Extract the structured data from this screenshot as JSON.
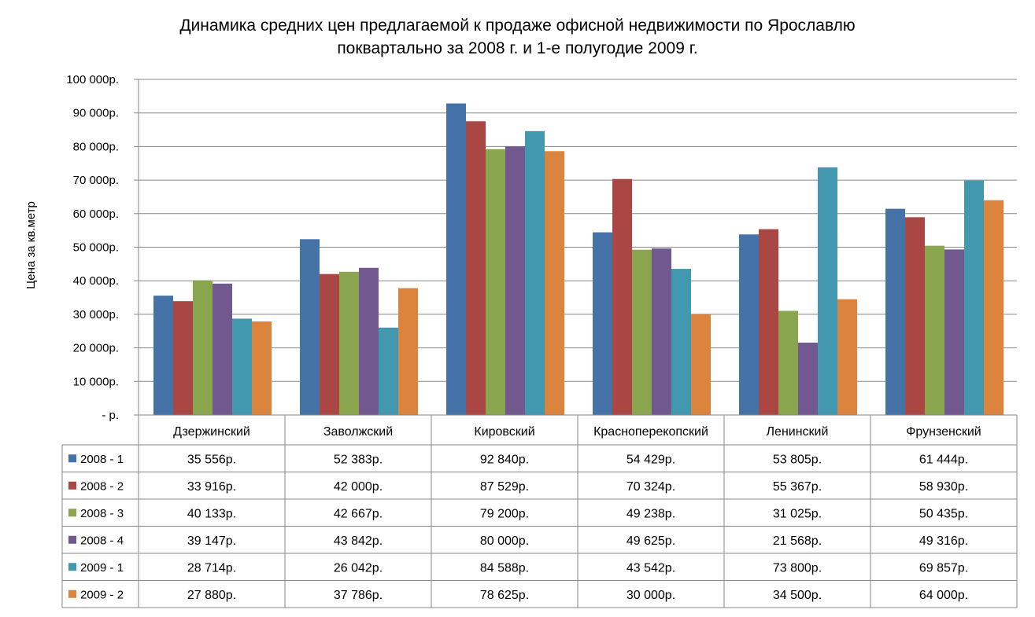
{
  "chart_data": {
    "type": "bar",
    "title_line1": "Динамика средних цен предлагаемой к продаже офисной недвижимости по Ярославлю",
    "title_line2": "поквартально за 2008 г. и 1-е полугодие 2009 г.",
    "ylabel": "Цена за кв.метр",
    "ylim": [
      0,
      100000
    ],
    "yticks": [
      {
        "value": 0,
        "label": "-  р."
      },
      {
        "value": 10000,
        "label": "10 000р."
      },
      {
        "value": 20000,
        "label": "20 000р."
      },
      {
        "value": 30000,
        "label": "30 000р."
      },
      {
        "value": 40000,
        "label": "40 000р."
      },
      {
        "value": 50000,
        "label": "50 000р."
      },
      {
        "value": 60000,
        "label": "60 000р."
      },
      {
        "value": 70000,
        "label": "70 000р."
      },
      {
        "value": 80000,
        "label": "80 000р."
      },
      {
        "value": 90000,
        "label": "90 000р."
      },
      {
        "value": 100000,
        "label": "100 000р."
      }
    ],
    "grid": true,
    "legend": "data-table",
    "categories": [
      "Дзержинский",
      "Заволжский",
      "Кировский",
      "Красноперекопский",
      "Ленинский",
      "Фрунзенский"
    ],
    "series": [
      {
        "name": "2008 - 1",
        "color": "#4572A7",
        "values": [
          35556,
          52383,
          92840,
          54429,
          53805,
          61444
        ],
        "labels": [
          "35 556р.",
          "52 383р.",
          "92 840р.",
          "54 429р.",
          "53 805р.",
          "61 444р."
        ]
      },
      {
        "name": "2008 - 2",
        "color": "#AA4643",
        "values": [
          33916,
          42000,
          87529,
          70324,
          55367,
          58930
        ],
        "labels": [
          "33 916р.",
          "42 000р.",
          "87 529р.",
          "70 324р.",
          "55 367р.",
          "58 930р."
        ]
      },
      {
        "name": "2008 - 3",
        "color": "#89A54E",
        "values": [
          40133,
          42667,
          79200,
          49238,
          31025,
          50435
        ],
        "labels": [
          "40 133р.",
          "42 667р.",
          "79 200р.",
          "49 238р.",
          "31 025р.",
          "50 435р."
        ]
      },
      {
        "name": "2008 - 4",
        "color": "#71588F",
        "values": [
          39147,
          43842,
          80000,
          49625,
          21568,
          49316
        ],
        "labels": [
          "39 147р.",
          "43 842р.",
          "80 000р.",
          "49 625р.",
          "21 568р.",
          "49 316р."
        ]
      },
      {
        "name": "2009 - 1",
        "color": "#4198AF",
        "values": [
          28714,
          26042,
          84588,
          43542,
          73800,
          69857
        ],
        "labels": [
          "28 714р.",
          "26 042р.",
          "84 588р.",
          "43 542р.",
          "73 800р.",
          "69 857р."
        ]
      },
      {
        "name": "2009 - 2",
        "color": "#DB843D",
        "values": [
          27880,
          37786,
          78625,
          30000,
          34500,
          64000
        ],
        "labels": [
          "27 880р.",
          "37 786р.",
          "78 625р.",
          "30 000р.",
          "34 500р.",
          "64 000р."
        ]
      }
    ]
  }
}
